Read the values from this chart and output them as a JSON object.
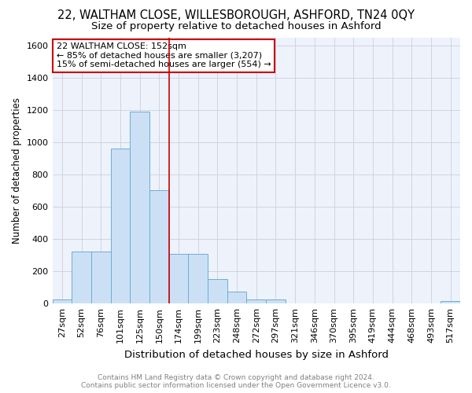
{
  "title1": "22, WALTHAM CLOSE, WILLESBOROUGH, ASHFORD, TN24 0QY",
  "title2": "Size of property relative to detached houses in Ashford",
  "xlabel": "Distribution of detached houses by size in Ashford",
  "ylabel": "Number of detached properties",
  "bar_labels": [
    "27sqm",
    "52sqm",
    "76sqm",
    "101sqm",
    "125sqm",
    "150sqm",
    "174sqm",
    "199sqm",
    "223sqm",
    "248sqm",
    "272sqm",
    "297sqm",
    "321sqm",
    "346sqm",
    "370sqm",
    "395sqm",
    "419sqm",
    "444sqm",
    "468sqm",
    "493sqm",
    "517sqm"
  ],
  "bar_values": [
    25,
    320,
    320,
    960,
    1190,
    700,
    310,
    310,
    150,
    75,
    25,
    25,
    0,
    0,
    0,
    0,
    0,
    0,
    0,
    0,
    15
  ],
  "bar_face_color": "#cce0f5",
  "bar_edge_color": "#6aaed6",
  "vline_x": 5.5,
  "vline_color": "#cc0000",
  "ylim": [
    0,
    1650
  ],
  "yticks": [
    0,
    200,
    400,
    600,
    800,
    1000,
    1200,
    1400,
    1600
  ],
  "annotation_text": "22 WALTHAM CLOSE: 152sqm\n← 85% of detached houses are smaller (3,207)\n15% of semi-detached houses are larger (554) →",
  "footer1": "Contains HM Land Registry data © Crown copyright and database right 2024.",
  "footer2": "Contains public sector information licensed under the Open Government Licence v3.0.",
  "bg_color": "#eef2fb",
  "grid_color": "#c8d0e0",
  "title1_fontsize": 10.5,
  "title2_fontsize": 9.5,
  "xlabel_fontsize": 9.5,
  "ylabel_fontsize": 8.5,
  "tick_fontsize": 8,
  "footer_fontsize": 6.5,
  "annotation_fontsize": 8
}
